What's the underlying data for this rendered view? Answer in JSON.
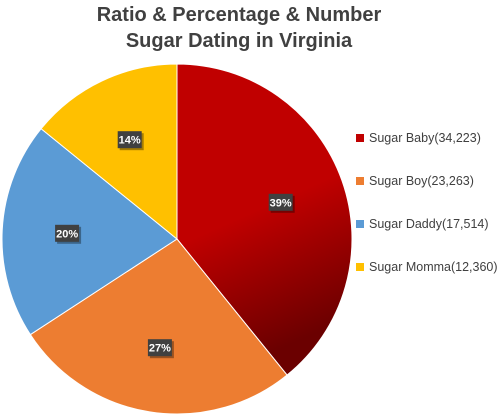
{
  "chart_data": {
    "type": "pie",
    "title_lines": [
      "Ratio & Percentage & Number",
      "Sugar Dating in Virginia"
    ],
    "slices": [
      {
        "legend": "Sugar Baby(34,223)",
        "value": 34223,
        "label": "39%",
        "color": "#c00000",
        "gradient_dark": "#6b0000"
      },
      {
        "legend": "Sugar Boy(23,263)",
        "value": 23263,
        "label": "27%",
        "color": "#ed7d31"
      },
      {
        "legend": "Sugar Daddy(17,514)",
        "value": 17514,
        "label": "20%",
        "color": "#5b9bd5"
      },
      {
        "legend": "Sugar Momma(12,360)",
        "value": 12360,
        "label": "14%",
        "color": "#ffc000"
      }
    ],
    "legend_position": "right",
    "start_angle_deg": 0,
    "direction": "clockwise"
  }
}
